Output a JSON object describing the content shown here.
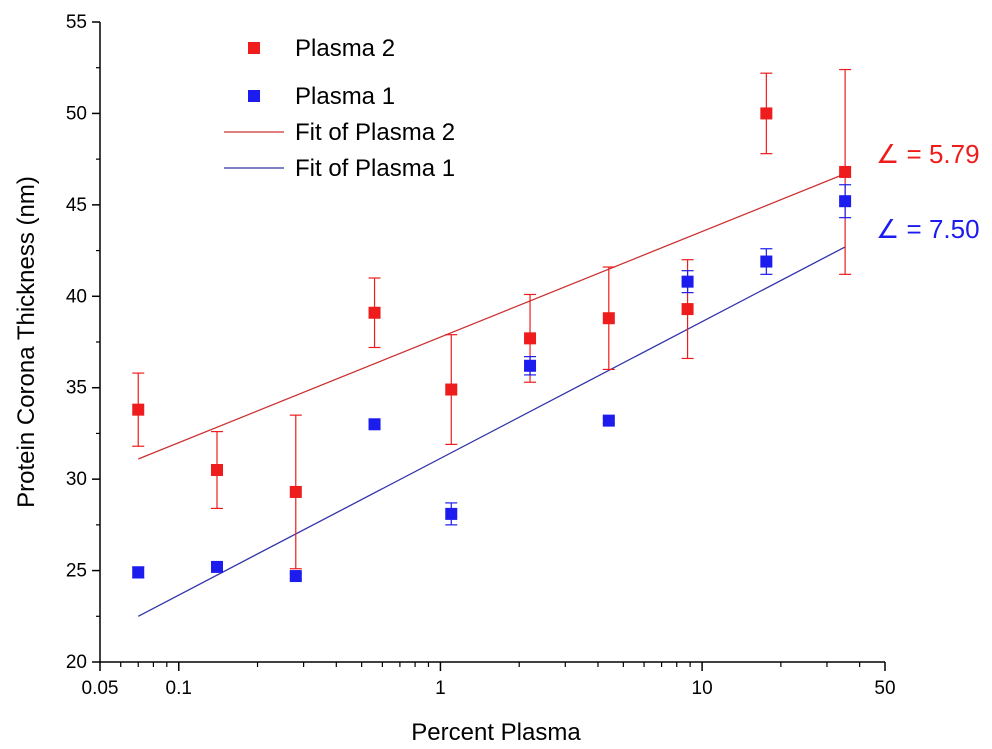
{
  "chart_data": {
    "type": "scatter",
    "x_scale": "log",
    "xlabel": "Percent Plasma",
    "ylabel": "Protein Corona Thickness (nm)",
    "xlim": [
      0.05,
      50
    ],
    "ylim": [
      20,
      55
    ],
    "x_ticks": [
      "0.05",
      "0.1",
      "1",
      "10",
      "50"
    ],
    "y_ticks": [
      "20",
      "25",
      "30",
      "35",
      "40",
      "45",
      "50",
      "55"
    ],
    "grid": false,
    "legend_position": "top-left",
    "series": [
      {
        "name": "Plasma 2",
        "kind": "points",
        "color": "#ee1c1c",
        "x": [
          0.07,
          0.14,
          0.28,
          0.56,
          1.1,
          2.2,
          4.4,
          8.8,
          17.6,
          35.2
        ],
        "y": [
          33.8,
          30.5,
          29.3,
          39.1,
          34.9,
          37.7,
          38.8,
          39.3,
          50.0,
          46.8
        ],
        "err": [
          2.0,
          2.1,
          4.2,
          1.9,
          3.0,
          2.4,
          2.8,
          2.7,
          2.2,
          5.6
        ]
      },
      {
        "name": "Plasma 1",
        "kind": "points",
        "color": "#1c1cee",
        "x": [
          0.07,
          0.14,
          0.28,
          0.56,
          1.1,
          2.2,
          4.4,
          8.8,
          17.6,
          35.2
        ],
        "y": [
          24.9,
          25.2,
          24.7,
          33.0,
          28.1,
          36.2,
          33.2,
          40.8,
          41.9,
          45.2
        ],
        "err": [
          0.3,
          0.15,
          0.15,
          0.15,
          0.6,
          0.5,
          0.15,
          0.6,
          0.7,
          0.9
        ]
      },
      {
        "name": "Fit of Plasma 2",
        "kind": "line",
        "color": "#cc3333",
        "x": [
          0.07,
          35.2
        ],
        "y": [
          31.1,
          46.7
        ]
      },
      {
        "name": "Fit of Plasma 1",
        "kind": "line",
        "color": "#3333aa",
        "x": [
          0.07,
          35.2
        ],
        "y": [
          22.5,
          42.7
        ]
      }
    ],
    "annotations": [
      {
        "text": "∠ = 5.79",
        "color": "#ee1c1c"
      },
      {
        "text": "∠ = 7.50",
        "color": "#1c1cee"
      }
    ]
  }
}
